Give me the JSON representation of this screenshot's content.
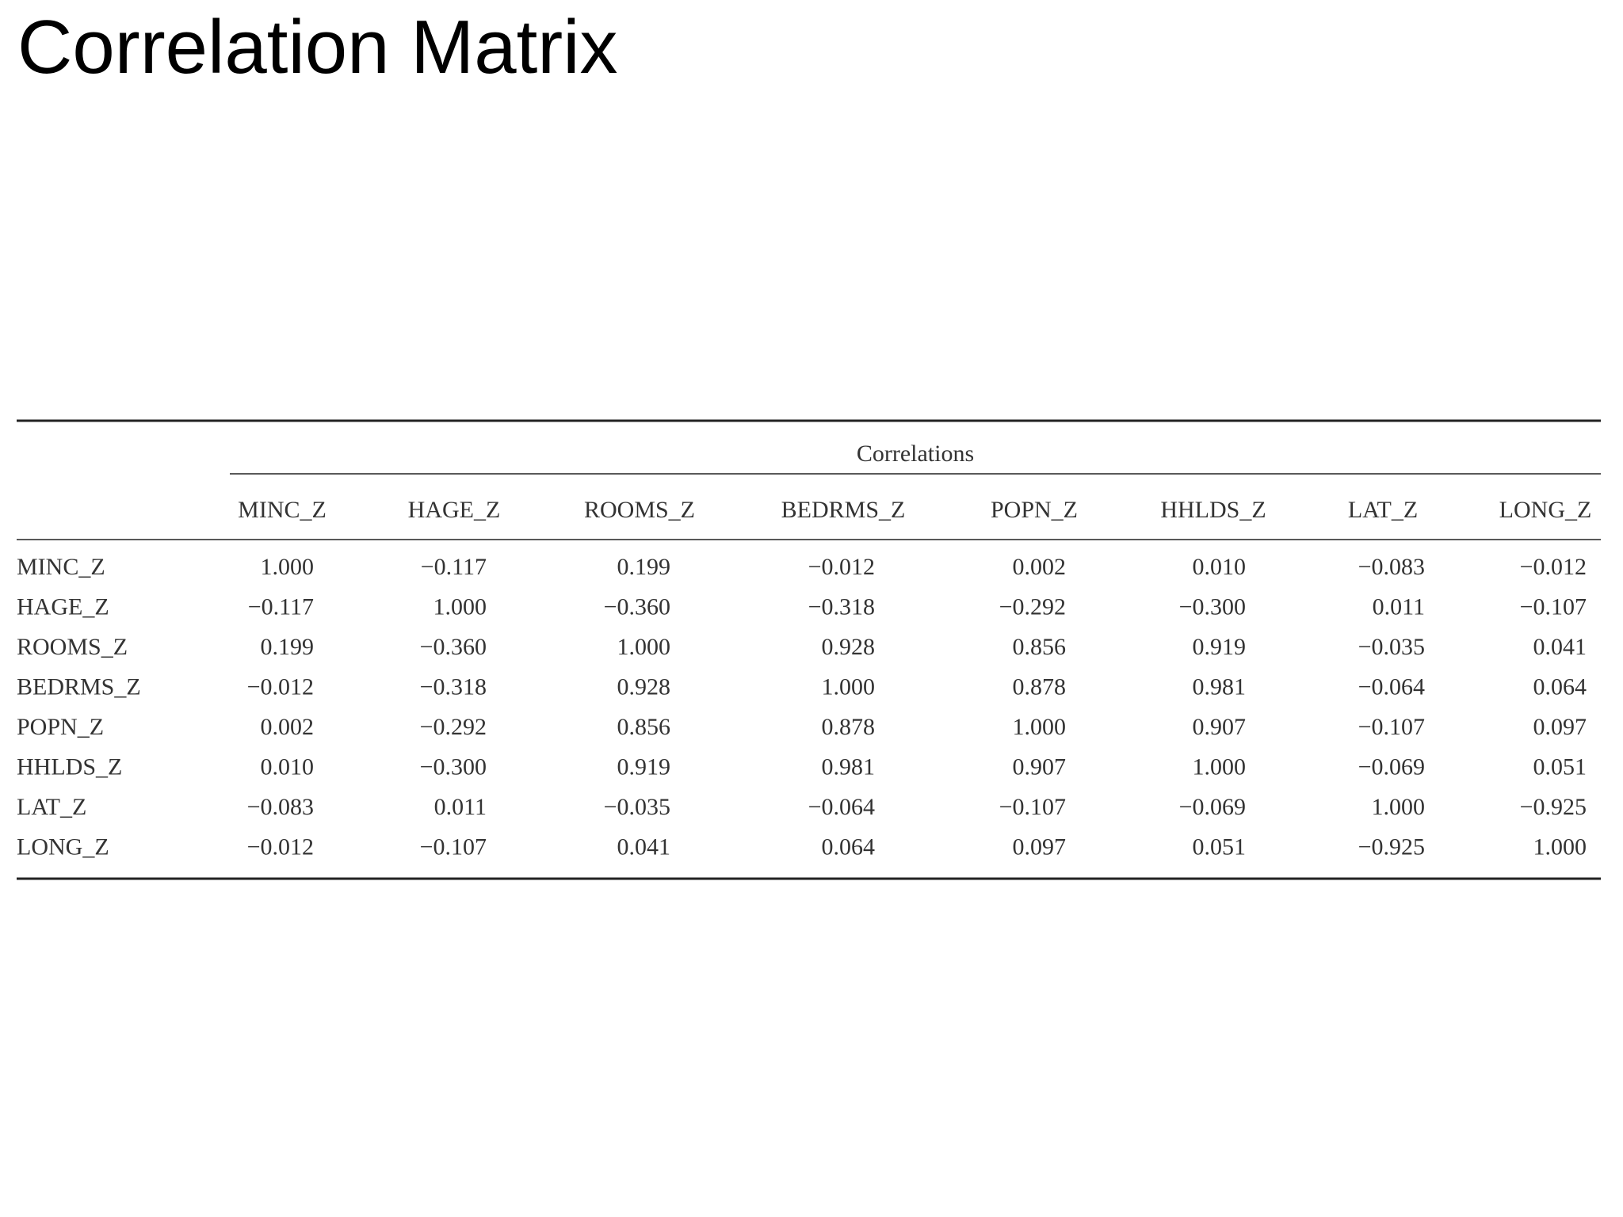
{
  "header": {
    "title": "Correlation Matrix"
  },
  "table": {
    "caption": "Correlations",
    "columns": [
      "MINC_Z",
      "HAGE_Z",
      "ROOMS_Z",
      "BEDRMS_Z",
      "POPN_Z",
      "HHLDS_Z",
      "LAT_Z",
      "LONG_Z"
    ],
    "rows": [
      [
        "MINC_Z",
        "1.000",
        "−0.117",
        "0.199",
        "−0.012",
        "0.002",
        "0.010",
        "−0.083",
        "−0.012"
      ],
      [
        "HAGE_Z",
        "−0.117",
        "1.000",
        "−0.360",
        "−0.318",
        "−0.292",
        "−0.300",
        "0.011",
        "−0.107"
      ],
      [
        "ROOMS_Z",
        "0.199",
        "−0.360",
        "1.000",
        "0.928",
        "0.856",
        "0.919",
        "−0.035",
        "0.041"
      ],
      [
        "BEDRMS_Z",
        "−0.012",
        "−0.318",
        "0.928",
        "1.000",
        "0.878",
        "0.981",
        "−0.064",
        "0.064"
      ],
      [
        "POPN_Z",
        "0.002",
        "−0.292",
        "0.856",
        "0.878",
        "1.000",
        "0.907",
        "−0.107",
        "0.097"
      ],
      [
        "HHLDS_Z",
        "0.010",
        "−0.300",
        "0.919",
        "0.981",
        "0.907",
        "1.000",
        "−0.069",
        "0.051"
      ],
      [
        "LAT_Z",
        "−0.083",
        "0.011",
        "−0.035",
        "−0.064",
        "−0.107",
        "−0.069",
        "1.000",
        "−0.925"
      ],
      [
        "LONG_Z",
        "−0.012",
        "−0.107",
        "0.041",
        "0.064",
        "0.097",
        "0.051",
        "−0.925",
        "1.000"
      ]
    ]
  }
}
